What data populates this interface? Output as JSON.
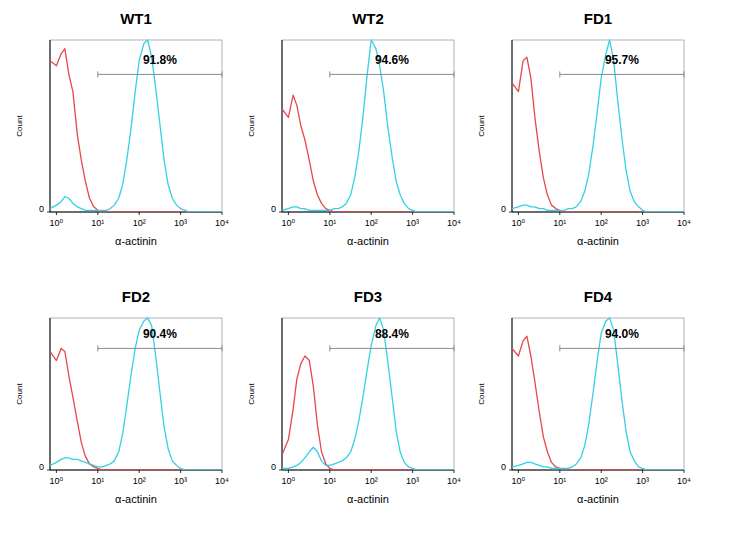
{
  "chart_data": [
    {
      "type": "line",
      "title": "WT1",
      "x_label": "α-actinin",
      "y_label": "Count",
      "log": "x",
      "xlim": [
        0.7,
        10000
      ],
      "ylim": [
        0,
        100
      ],
      "xticks": [
        {
          "value": 1,
          "label": "10⁰"
        },
        {
          "value": 10,
          "label": "10¹"
        },
        {
          "value": 100,
          "label": "10²"
        },
        {
          "value": 1000,
          "label": "10³"
        },
        {
          "value": 10000,
          "label": "10⁴"
        }
      ],
      "yticks": [
        0
      ],
      "x": [
        0.7,
        1,
        1.3,
        1.6,
        2,
        2.5,
        3.2,
        4,
        5,
        6.3,
        8,
        10,
        13,
        16,
        20,
        25,
        32,
        40,
        50,
        63,
        80,
        100,
        130,
        160,
        200,
        250,
        320,
        400,
        500,
        630,
        800,
        1000,
        1300,
        1600,
        2000,
        2500,
        3200,
        4000,
        5000,
        6300,
        8000,
        10000
      ],
      "series": [
        {
          "color": "#e5484d",
          "values": [
            88,
            85,
            92,
            95,
            80,
            70,
            45,
            30,
            18,
            8,
            3,
            1,
            0,
            0,
            0,
            0,
            0,
            0,
            0,
            0,
            0,
            0,
            0,
            0,
            0,
            0,
            0,
            0,
            0,
            0,
            0,
            0,
            0,
            0,
            0,
            0,
            0,
            0,
            0,
            0,
            0,
            0
          ]
        },
        {
          "color": "#35d0e6",
          "values": [
            2,
            4,
            6,
            9,
            8,
            5,
            3,
            2,
            1,
            1,
            1,
            1,
            1,
            1,
            2,
            4,
            8,
            16,
            30,
            48,
            70,
            88,
            98,
            100,
            90,
            72,
            50,
            30,
            16,
            8,
            4,
            2,
            1,
            0,
            0,
            0,
            0,
            0,
            0,
            0,
            0,
            0
          ]
        }
      ],
      "annotations": [
        {
          "text": "91.8%",
          "x": [
            10,
            10000
          ],
          "y": 80
        }
      ]
    },
    {
      "type": "line",
      "title": "WT2",
      "x_label": "α-actinin",
      "y_label": "Count",
      "log": "x",
      "xlim": [
        0.7,
        10000
      ],
      "ylim": [
        0,
        100
      ],
      "xticks": [
        {
          "value": 1,
          "label": "10⁰"
        },
        {
          "value": 10,
          "label": "10¹"
        },
        {
          "value": 100,
          "label": "10²"
        },
        {
          "value": 1000,
          "label": "10³"
        },
        {
          "value": 10000,
          "label": "10⁴"
        }
      ],
      "yticks": [
        0
      ],
      "x": [
        0.7,
        1,
        1.3,
        1.6,
        2,
        2.5,
        3.2,
        4,
        5,
        6.3,
        8,
        10,
        13,
        16,
        20,
        25,
        32,
        40,
        50,
        63,
        80,
        100,
        130,
        160,
        200,
        250,
        320,
        400,
        500,
        630,
        800,
        1000,
        1300,
        1600,
        2000,
        2500,
        3200,
        4000,
        5000,
        6300,
        8000,
        10000
      ],
      "series": [
        {
          "color": "#e5484d",
          "values": [
            60,
            55,
            68,
            62,
            50,
            42,
            30,
            18,
            10,
            5,
            2,
            1,
            0,
            0,
            0,
            0,
            0,
            0,
            0,
            0,
            0,
            0,
            0,
            0,
            0,
            0,
            0,
            0,
            0,
            0,
            0,
            0,
            0,
            0,
            0,
            0,
            0,
            0,
            0,
            0,
            0,
            0
          ]
        },
        {
          "color": "#35d0e6",
          "values": [
            1,
            2,
            3,
            3,
            2,
            2,
            1,
            1,
            1,
            1,
            1,
            1,
            2,
            2,
            3,
            5,
            10,
            20,
            35,
            55,
            80,
            100,
            95,
            85,
            70,
            50,
            32,
            18,
            10,
            5,
            2,
            1,
            0,
            0,
            0,
            0,
            0,
            0,
            0,
            0,
            0,
            0
          ]
        }
      ],
      "annotations": [
        {
          "text": "94.6%",
          "x": [
            10,
            10000
          ],
          "y": 80
        }
      ]
    },
    {
      "type": "line",
      "title": "FD1",
      "x_label": "α-actinin",
      "y_label": "Count",
      "log": "x",
      "xlim": [
        0.7,
        10000
      ],
      "ylim": [
        0,
        100
      ],
      "xticks": [
        {
          "value": 1,
          "label": "10⁰"
        },
        {
          "value": 10,
          "label": "10¹"
        },
        {
          "value": 100,
          "label": "10²"
        },
        {
          "value": 1000,
          "label": "10³"
        },
        {
          "value": 10000,
          "label": "10⁴"
        }
      ],
      "yticks": [
        0
      ],
      "x": [
        0.7,
        1,
        1.3,
        1.6,
        2,
        2.5,
        3.2,
        4,
        5,
        6.3,
        8,
        10,
        13,
        16,
        20,
        25,
        32,
        40,
        50,
        63,
        80,
        100,
        130,
        160,
        200,
        250,
        320,
        400,
        500,
        630,
        800,
        1000,
        1300,
        1600,
        2000,
        2500,
        3200,
        4000,
        5000,
        6300,
        8000,
        10000
      ],
      "series": [
        {
          "color": "#e5484d",
          "values": [
            75,
            70,
            88,
            90,
            78,
            55,
            35,
            20,
            10,
            4,
            2,
            1,
            0,
            0,
            0,
            0,
            0,
            0,
            0,
            0,
            0,
            0,
            0,
            0,
            0,
            0,
            0,
            0,
            0,
            0,
            0,
            0,
            0,
            0,
            0,
            0,
            0,
            0,
            0,
            0,
            0,
            0
          ]
        },
        {
          "color": "#35d0e6",
          "values": [
            2,
            3,
            4,
            4,
            3,
            3,
            2,
            2,
            1,
            1,
            1,
            1,
            1,
            2,
            2,
            3,
            6,
            12,
            22,
            38,
            58,
            78,
            92,
            100,
            88,
            65,
            42,
            24,
            12,
            6,
            3,
            1,
            0,
            0,
            0,
            0,
            0,
            0,
            0,
            0,
            0,
            0
          ]
        }
      ],
      "annotations": [
        {
          "text": "95.7%",
          "x": [
            10,
            10000
          ],
          "y": 80
        }
      ]
    },
    {
      "type": "line",
      "title": "FD2",
      "x_label": "α-actinin",
      "y_label": "Count",
      "log": "x",
      "xlim": [
        0.7,
        10000
      ],
      "ylim": [
        0,
        100
      ],
      "xticks": [
        {
          "value": 1,
          "label": "10⁰"
        },
        {
          "value": 10,
          "label": "10¹"
        },
        {
          "value": 100,
          "label": "10²"
        },
        {
          "value": 1000,
          "label": "10³"
        },
        {
          "value": 10000,
          "label": "10⁴"
        }
      ],
      "yticks": [
        0
      ],
      "x": [
        0.7,
        1,
        1.3,
        1.6,
        2,
        2.5,
        3.2,
        4,
        5,
        6.3,
        8,
        10,
        13,
        16,
        20,
        25,
        32,
        40,
        50,
        63,
        80,
        100,
        130,
        160,
        200,
        250,
        320,
        400,
        500,
        630,
        800,
        1000,
        1300,
        1600,
        2000,
        2500,
        3200,
        4000,
        5000,
        6300,
        8000,
        10000
      ],
      "series": [
        {
          "color": "#e5484d",
          "values": [
            78,
            72,
            80,
            78,
            62,
            48,
            32,
            18,
            9,
            4,
            2,
            1,
            0,
            0,
            0,
            0,
            0,
            0,
            0,
            0,
            0,
            0,
            0,
            0,
            0,
            0,
            0,
            0,
            0,
            0,
            0,
            0,
            0,
            0,
            0,
            0,
            0,
            0,
            0,
            0,
            0,
            0
          ]
        },
        {
          "color": "#35d0e6",
          "values": [
            3,
            5,
            7,
            8,
            8,
            7,
            7,
            6,
            5,
            4,
            3,
            2,
            2,
            3,
            4,
            6,
            12,
            24,
            42,
            62,
            80,
            92,
            98,
            100,
            95,
            75,
            50,
            28,
            14,
            6,
            3,
            1,
            0,
            0,
            0,
            0,
            0,
            0,
            0,
            0,
            0,
            0
          ]
        }
      ],
      "annotations": [
        {
          "text": "90.4%",
          "x": [
            10,
            10000
          ],
          "y": 80
        }
      ]
    },
    {
      "type": "line",
      "title": "FD3",
      "x_label": "α-actinin",
      "y_label": "Count",
      "log": "x",
      "xlim": [
        0.7,
        10000
      ],
      "ylim": [
        0,
        100
      ],
      "xticks": [
        {
          "value": 1,
          "label": "10⁰"
        },
        {
          "value": 10,
          "label": "10¹"
        },
        {
          "value": 100,
          "label": "10²"
        },
        {
          "value": 1000,
          "label": "10³"
        },
        {
          "value": 10000,
          "label": "10⁴"
        }
      ],
      "yticks": [
        0
      ],
      "x": [
        0.7,
        1,
        1.3,
        1.6,
        2,
        2.5,
        3.2,
        4,
        5,
        6.3,
        8,
        10,
        13,
        16,
        20,
        25,
        32,
        40,
        50,
        63,
        80,
        100,
        130,
        160,
        200,
        250,
        320,
        400,
        500,
        630,
        800,
        1000,
        1300,
        1600,
        2000,
        2500,
        3200,
        4000,
        5000,
        6300,
        8000,
        10000
      ],
      "series": [
        {
          "color": "#e5484d",
          "values": [
            10,
            20,
            40,
            60,
            70,
            75,
            72,
            55,
            30,
            12,
            4,
            1,
            0,
            0,
            0,
            0,
            0,
            0,
            0,
            0,
            0,
            0,
            0,
            0,
            0,
            0,
            0,
            0,
            0,
            0,
            0,
            0,
            0,
            0,
            0,
            0,
            0,
            0,
            0,
            0,
            0,
            0
          ]
        },
        {
          "color": "#35d0e6",
          "values": [
            1,
            1,
            2,
            3,
            5,
            8,
            12,
            15,
            12,
            6,
            3,
            3,
            4,
            5,
            6,
            8,
            12,
            20,
            32,
            48,
            66,
            82,
            95,
            100,
            92,
            72,
            48,
            26,
            12,
            5,
            2,
            1,
            0,
            0,
            0,
            0,
            0,
            0,
            0,
            0,
            0,
            0
          ]
        }
      ],
      "annotations": [
        {
          "text": "88.4%",
          "x": [
            10,
            10000
          ],
          "y": 80
        }
      ]
    },
    {
      "type": "line",
      "title": "FD4",
      "x_label": "α-actinin",
      "y_label": "Count",
      "log": "x",
      "xlim": [
        0.7,
        10000
      ],
      "ylim": [
        0,
        100
      ],
      "xticks": [
        {
          "value": 1,
          "label": "10⁰"
        },
        {
          "value": 10,
          "label": "10¹"
        },
        {
          "value": 100,
          "label": "10²"
        },
        {
          "value": 1000,
          "label": "10³"
        },
        {
          "value": 10000,
          "label": "10⁴"
        }
      ],
      "yticks": [
        0
      ],
      "x": [
        0.7,
        1,
        1.3,
        1.6,
        2,
        2.5,
        3.2,
        4,
        5,
        6.3,
        8,
        10,
        13,
        16,
        20,
        25,
        32,
        40,
        50,
        63,
        80,
        100,
        130,
        160,
        200,
        250,
        320,
        400,
        500,
        630,
        800,
        1000,
        1300,
        1600,
        2000,
        2500,
        3200,
        4000,
        5000,
        6300,
        8000,
        10000
      ],
      "series": [
        {
          "color": "#e5484d",
          "values": [
            80,
            75,
            85,
            88,
            75,
            58,
            38,
            22,
            12,
            5,
            2,
            1,
            0,
            0,
            0,
            0,
            0,
            0,
            0,
            0,
            0,
            0,
            0,
            0,
            0,
            0,
            0,
            0,
            0,
            0,
            0,
            0,
            0,
            0,
            0,
            0,
            0,
            0,
            0,
            0,
            0,
            0
          ]
        },
        {
          "color": "#35d0e6",
          "values": [
            2,
            3,
            4,
            5,
            5,
            4,
            3,
            2,
            2,
            1,
            1,
            1,
            1,
            1,
            2,
            4,
            8,
            16,
            30,
            50,
            72,
            90,
            98,
            100,
            92,
            70,
            45,
            25,
            12,
            6,
            2,
            1,
            0,
            0,
            0,
            0,
            0,
            0,
            0,
            0,
            0,
            0
          ]
        }
      ],
      "annotations": [
        {
          "text": "94.0%",
          "x": [
            10,
            10000
          ],
          "y": 80
        }
      ]
    }
  ]
}
